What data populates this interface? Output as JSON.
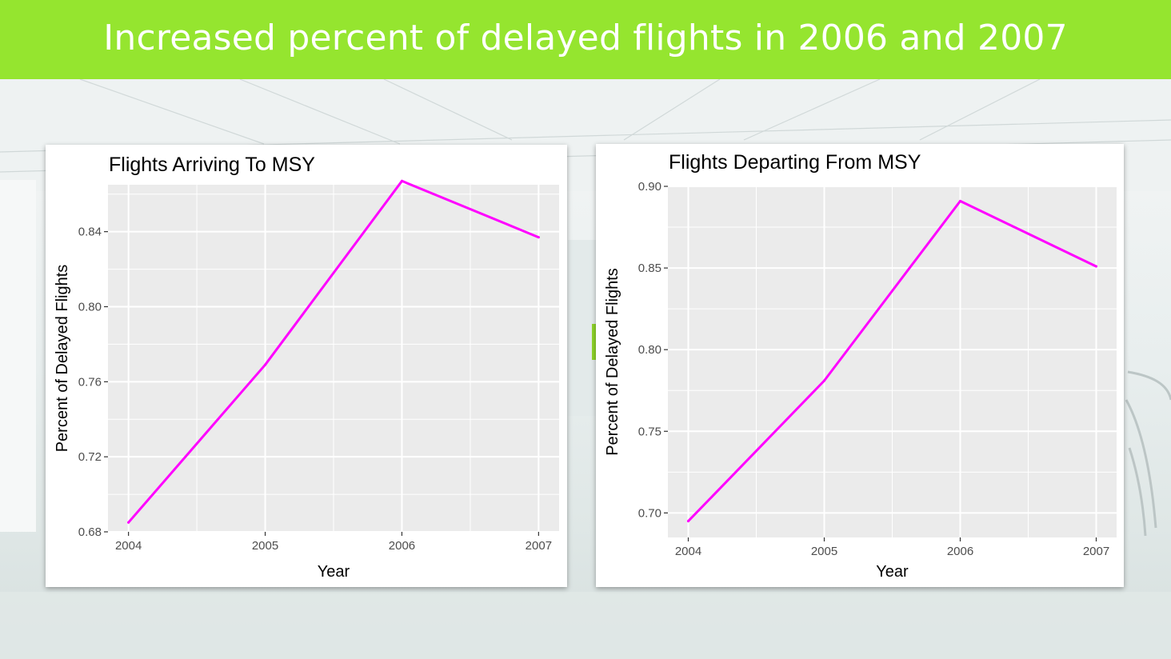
{
  "slide": {
    "title": "Increased percent of delayed flights in 2006 and 2007"
  },
  "colors": {
    "banner": "#95e52f",
    "line": "#ff00ff",
    "panel": "#ebebeb",
    "grid": "#ffffff"
  },
  "chart_data": [
    {
      "type": "line",
      "title": "Flights Arriving To MSY",
      "xlabel": "Year",
      "ylabel": "Percent of Delayed Flights",
      "x": [
        2004,
        2005,
        2006,
        2007
      ],
      "xlim": [
        2003.85,
        2007.15
      ],
      "ylim": [
        0.68,
        0.865
      ],
      "yticks": [
        0.68,
        0.72,
        0.76,
        0.8,
        0.84
      ],
      "ytick_labels": [
        "0.68",
        "0.72",
        "0.76",
        "0.80",
        "0.84"
      ],
      "xtick_labels": [
        "2004",
        "2005",
        "2006",
        "2007"
      ],
      "grid": true,
      "series": [
        {
          "values": [
            0.685,
            0.769,
            0.867,
            0.837
          ]
        }
      ]
    },
    {
      "type": "line",
      "title": "Flights Departing From MSY",
      "xlabel": "Year",
      "ylabel": "Percent of Delayed Flights",
      "x": [
        2004,
        2005,
        2006,
        2007
      ],
      "xlim": [
        2003.85,
        2007.15
      ],
      "ylim": [
        0.685,
        0.9
      ],
      "yticks": [
        0.7,
        0.75,
        0.8,
        0.85,
        0.9
      ],
      "ytick_labels": [
        "0.70",
        "0.75",
        "0.80",
        "0.85",
        "0.90"
      ],
      "xtick_labels": [
        "2004",
        "2005",
        "2006",
        "2007"
      ],
      "grid": true,
      "series": [
        {
          "values": [
            0.695,
            0.781,
            0.891,
            0.851
          ]
        }
      ]
    }
  ]
}
